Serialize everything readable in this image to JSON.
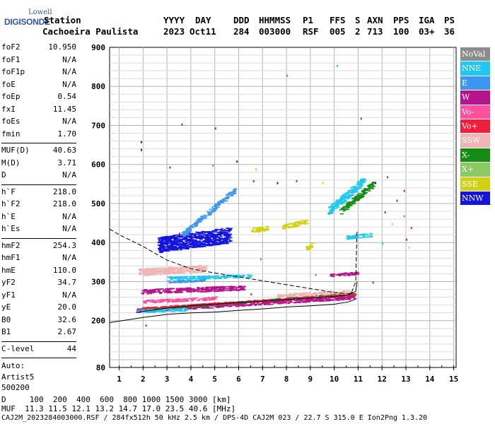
{
  "logo": {
    "line1": "Lowell",
    "line2": "DIGISONDE"
  },
  "header": {
    "row1": {
      "station": "Station",
      "yyyy": "YYYY",
      "day": "DAY",
      "ddd": "DDD",
      "hhmmss": "HHMMSS",
      "p1": "P1",
      "ffs": "FFS",
      "s": "S",
      "axn": "AXN",
      "pps": "PPS",
      "iga": "IGA",
      "ps": "PS"
    },
    "row2": {
      "station": "Cachoeira Paulista",
      "yyyy": "2023",
      "day": "Oct11",
      "ddd": "284",
      "hhmmss": "003000",
      "p1": "RSF",
      "ffs": "005",
      "s": "2",
      "axn": "713",
      "pps": "100",
      "iga": "03+",
      "ps": "36"
    }
  },
  "params": {
    "group1": [
      {
        "key": "foF2",
        "value": "10.950"
      },
      {
        "key": "foF1",
        "value": "N/A"
      },
      {
        "key": "foF1p",
        "value": "N/A"
      },
      {
        "key": "foE",
        "value": "N/A"
      },
      {
        "key": "foEp",
        "value": "0.54"
      },
      {
        "key": "fxI",
        "value": "11.45"
      },
      {
        "key": "foEs",
        "value": "N/A"
      },
      {
        "key": "fmin",
        "value": "1.70"
      }
    ],
    "group2": [
      {
        "key": "MUF(D)",
        "value": "40.63"
      },
      {
        "key": "M(D)",
        "value": "3.71"
      },
      {
        "key": "D",
        "value": "N/A"
      }
    ],
    "group3": [
      {
        "key": "h`F",
        "value": "218.0"
      },
      {
        "key": "h`F2",
        "value": "218.0"
      },
      {
        "key": "h`E",
        "value": "N/A"
      },
      {
        "key": "h`Es",
        "value": "N/A"
      }
    ],
    "group4": [
      {
        "key": "hmF2",
        "value": "254.3"
      },
      {
        "key": "hmF1",
        "value": "N/A"
      },
      {
        "key": "hmE",
        "value": "110.0"
      },
      {
        "key": "yF2",
        "value": "34.7"
      },
      {
        "key": "yF1",
        "value": "N/A"
      },
      {
        "key": "yE",
        "value": "20.0"
      },
      {
        "key": "B0",
        "value": "32.6"
      },
      {
        "key": "B1",
        "value": "2.67"
      }
    ],
    "group5": [
      {
        "key": "C-level",
        "value": "44"
      }
    ],
    "notes": [
      "Auto:",
      "Artist5",
      "500200"
    ]
  },
  "legend": [
    {
      "label": "NoVal",
      "color": "#8c8c8c"
    },
    {
      "label": "NNE",
      "color": "#1ec8f0"
    },
    {
      "label": "E",
      "color": "#3c96f0"
    },
    {
      "label": "W",
      "color": "#b4148c"
    },
    {
      "label": "Vo-",
      "color": "#ff50a0"
    },
    {
      "label": "Vo+",
      "color": "#f01e3c"
    },
    {
      "label": "SSW",
      "color": "#f0b4b4"
    },
    {
      "label": "X-",
      "color": "#148c14"
    },
    {
      "label": "X+",
      "color": "#8cc864"
    },
    {
      "label": "SSE",
      "color": "#d2d214"
    },
    {
      "label": "NNW",
      "color": "#1414dc"
    }
  ],
  "chart_data": {
    "type": "scatter",
    "title": "",
    "xlabel": "",
    "ylabel": "",
    "xlim": [
      0.6,
      15.1
    ],
    "ylim": [
      80,
      900
    ],
    "x_ticks": [
      1,
      2,
      3,
      4,
      5,
      6,
      7,
      8,
      9,
      10,
      11,
      12,
      13,
      14,
      15
    ],
    "y_ticks": [
      80,
      200,
      300,
      400,
      500,
      600,
      700,
      800,
      900
    ],
    "grid": true,
    "legend_position": "right",
    "traces": [
      {
        "series": "W",
        "x_range": [
          1.7,
          10.8
        ],
        "h_start": 228,
        "h_end": 262,
        "thickness": 12
      },
      {
        "series": "W",
        "x_range": [
          1.9,
          6.2
        ],
        "h_start": 275,
        "h_end": 285,
        "thickness": 12
      },
      {
        "series": "NNW",
        "x_range": [
          2.6,
          5.6
        ],
        "h_start": 395,
        "h_end": 420,
        "thickness": 40
      },
      {
        "series": "E",
        "x_range": [
          3.6,
          5.8
        ],
        "h_start": 420,
        "h_end": 535,
        "thickness": 14
      },
      {
        "series": "SSE",
        "x_range": [
          6.5,
          7.2
        ],
        "h_start": 432,
        "h_end": 438,
        "thickness": 12
      },
      {
        "series": "SSE",
        "x_range": [
          7.8,
          8.8
        ],
        "h_start": 440,
        "h_end": 455,
        "thickness": 12
      },
      {
        "series": "SSE",
        "x_range": [
          8.8,
          9.0
        ],
        "h_start": 385,
        "h_end": 395,
        "thickness": 10
      },
      {
        "series": "NNE",
        "x_range": [
          9.7,
          11.2
        ],
        "h_start": 480,
        "h_end": 560,
        "thickness": 22
      },
      {
        "series": "NNE",
        "x_range": [
          10.5,
          11.5
        ],
        "h_start": 415,
        "h_end": 420,
        "thickness": 10
      },
      {
        "series": "NNE",
        "x_range": [
          3.0,
          6.5
        ],
        "h_start": 310,
        "h_end": 315,
        "thickness": 8
      },
      {
        "series": "X-",
        "x_range": [
          10.2,
          11.6
        ],
        "h_start": 480,
        "h_end": 550,
        "thickness": 16
      },
      {
        "series": "X-",
        "x_range": [
          2.0,
          10.8
        ],
        "h_start": 228,
        "h_end": 272,
        "thickness": 4
      },
      {
        "series": "Vo+",
        "x_range": [
          1.8,
          10.8
        ],
        "h_start": 232,
        "h_end": 268,
        "thickness": 4
      },
      {
        "series": "SSW",
        "x_range": [
          1.8,
          4.6
        ],
        "h_start": 325,
        "h_end": 335,
        "thickness": 18
      },
      {
        "series": "SSW",
        "x_range": [
          7.6,
          10.6
        ],
        "h_start": 265,
        "h_end": 275,
        "thickness": 8
      },
      {
        "series": "NNE",
        "x_range": [
          1.7,
          3.8
        ],
        "h_start": 225,
        "h_end": 230,
        "thickness": 8
      },
      {
        "series": "Vo-",
        "x_range": [
          2.0,
          5.0
        ],
        "h_start": 250,
        "h_end": 258,
        "thickness": 8
      },
      {
        "series": "W",
        "x_range": [
          9.8,
          11.0
        ],
        "h_start": 318,
        "h_end": 322,
        "thickness": 8
      },
      {
        "series": "E",
        "x_range": [
          3.0,
          4.6
        ],
        "h_start": 300,
        "h_end": 305,
        "thickness": 6
      }
    ],
    "points": [
      {
        "x": 1.9,
        "y": 660,
        "series": "NNW"
      },
      {
        "x": 1.9,
        "y": 640,
        "series": "NNW"
      },
      {
        "x": 3.6,
        "y": 705,
        "series": "Vo+"
      },
      {
        "x": 5.0,
        "y": 695,
        "series": "W"
      },
      {
        "x": 3.1,
        "y": 595,
        "series": "W"
      },
      {
        "x": 5.9,
        "y": 610,
        "series": "NNW"
      },
      {
        "x": 4.9,
        "y": 600,
        "series": "E"
      },
      {
        "x": 6.6,
        "y": 560,
        "series": "W"
      },
      {
        "x": 6.7,
        "y": 590,
        "series": "SSE"
      },
      {
        "x": 7.6,
        "y": 555,
        "series": "NNW"
      },
      {
        "x": 9.5,
        "y": 555,
        "series": "SSE"
      },
      {
        "x": 8.4,
        "y": 560,
        "series": "W"
      },
      {
        "x": 10.1,
        "y": 855,
        "series": "NNE"
      },
      {
        "x": 8.0,
        "y": 830,
        "series": "E"
      },
      {
        "x": 11.1,
        "y": 720,
        "series": "X-"
      },
      {
        "x": 12.2,
        "y": 570,
        "series": "X-"
      },
      {
        "x": 11.7,
        "y": 555,
        "series": "NNW"
      },
      {
        "x": 12.9,
        "y": 535,
        "series": "W"
      },
      {
        "x": 12.6,
        "y": 510,
        "series": "X-"
      },
      {
        "x": 12.1,
        "y": 480,
        "series": "X-"
      },
      {
        "x": 12.4,
        "y": 450,
        "series": "SSW"
      },
      {
        "x": 12.9,
        "y": 470,
        "series": "Vo-"
      },
      {
        "x": 13.2,
        "y": 440,
        "series": "Vo+"
      },
      {
        "x": 13.0,
        "y": 410,
        "series": "W"
      },
      {
        "x": 13.1,
        "y": 390,
        "series": "SSW"
      },
      {
        "x": 12.0,
        "y": 400,
        "series": "NNE"
      },
      {
        "x": 11.6,
        "y": 300,
        "series": "X-"
      },
      {
        "x": 2.1,
        "y": 190,
        "series": "X-"
      },
      {
        "x": 6.9,
        "y": 360,
        "series": "E"
      },
      {
        "x": 6.5,
        "y": 270,
        "series": "X-"
      },
      {
        "x": 9.2,
        "y": 320,
        "series": "E"
      },
      {
        "x": 3.5,
        "y": 425,
        "series": "W"
      }
    ],
    "virtual_height_profile": [
      {
        "f": 0.6,
        "h": 195
      },
      {
        "f": 2.0,
        "h": 208
      },
      {
        "f": 3.0,
        "h": 216
      },
      {
        "f": 4.0,
        "h": 220
      },
      {
        "f": 5.0,
        "h": 222
      },
      {
        "f": 6.0,
        "h": 226
      },
      {
        "f": 7.0,
        "h": 230
      },
      {
        "f": 8.0,
        "h": 235
      },
      {
        "f": 9.0,
        "h": 238
      },
      {
        "f": 10.0,
        "h": 242
      },
      {
        "f": 10.6,
        "h": 248
      },
      {
        "f": 10.9,
        "h": 255
      }
    ],
    "true_height_profile": [
      {
        "f": 0.6,
        "h": 435
      },
      {
        "f": 1.0,
        "h": 420
      },
      {
        "f": 2.0,
        "h": 390
      },
      {
        "f": 3.0,
        "h": 355
      },
      {
        "f": 4.0,
        "h": 333
      },
      {
        "f": 5.0,
        "h": 322
      },
      {
        "f": 6.0,
        "h": 312
      },
      {
        "f": 7.0,
        "h": 302
      },
      {
        "f": 8.0,
        "h": 292
      },
      {
        "f": 9.0,
        "h": 282
      },
      {
        "f": 10.0,
        "h": 272
      },
      {
        "f": 10.7,
        "h": 268
      },
      {
        "f": 10.9,
        "h": 300
      },
      {
        "f": 10.95,
        "h": 430
      }
    ],
    "ordinary_trace_curve": [
      {
        "f": 1.8,
        "h": 222
      },
      {
        "f": 3.0,
        "h": 232
      },
      {
        "f": 4.0,
        "h": 238
      },
      {
        "f": 5.0,
        "h": 242
      },
      {
        "f": 6.0,
        "h": 246
      },
      {
        "f": 7.0,
        "h": 250
      },
      {
        "f": 8.0,
        "h": 254
      },
      {
        "f": 9.0,
        "h": 258
      },
      {
        "f": 10.0,
        "h": 262
      },
      {
        "f": 10.6,
        "h": 266
      },
      {
        "f": 10.9,
        "h": 275
      },
      {
        "f": 10.95,
        "h": 300
      }
    ]
  },
  "footer": {
    "d_row": "D     100  200  400  600  800 1000 1500 3000 [km]",
    "muf_row": "MUF  11.3 11.5 12.1 13.2 14.7 17.0 23.5 40.6 [MHz]",
    "file_row": "CAJ2M_2023284003000.RSF / 284fx512h 50 kHz 2.5 km / DPS-4D CAJ2M 023 / 22.7 S 315.0 E Ion2Png 1.3.20"
  }
}
